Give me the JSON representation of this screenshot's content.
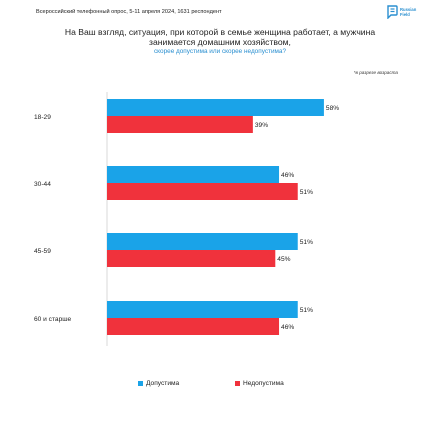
{
  "header": {
    "survey_line": "Всероссийский телефонный опрос, 5-11 апреля 2024, 1631 респондент",
    "logo_text_1": "Russian",
    "logo_text_2": "Field"
  },
  "question": "На Ваш взгляд, ситуация, при которой в семье женщина работает, а мужчина занимается домашним хозяйством, скорее допустима или скорее недопустима?",
  "subquestion": "скорее допустима или скорее недопустима?",
  "note": "*в разрезе возраста",
  "colors": {
    "acceptable": "#1aa3e8",
    "unacceptable": "#f0323c"
  },
  "chart_data": {
    "type": "bar",
    "orientation": "horizontal",
    "categories": [
      "18-29",
      "30-44",
      "45-59",
      "60 и старше"
    ],
    "series": [
      {
        "name": "Допустима",
        "values": [
          58,
          46,
          51,
          51
        ]
      },
      {
        "name": "Недопустима",
        "values": [
          39,
          51,
          45,
          46
        ]
      }
    ],
    "value_suffix": "%",
    "xlim": [
      0,
      100
    ],
    "grid": false,
    "legend_position": "bottom"
  },
  "legend": {
    "acceptable": "Допустима",
    "unacceptable": "Недопустима"
  }
}
